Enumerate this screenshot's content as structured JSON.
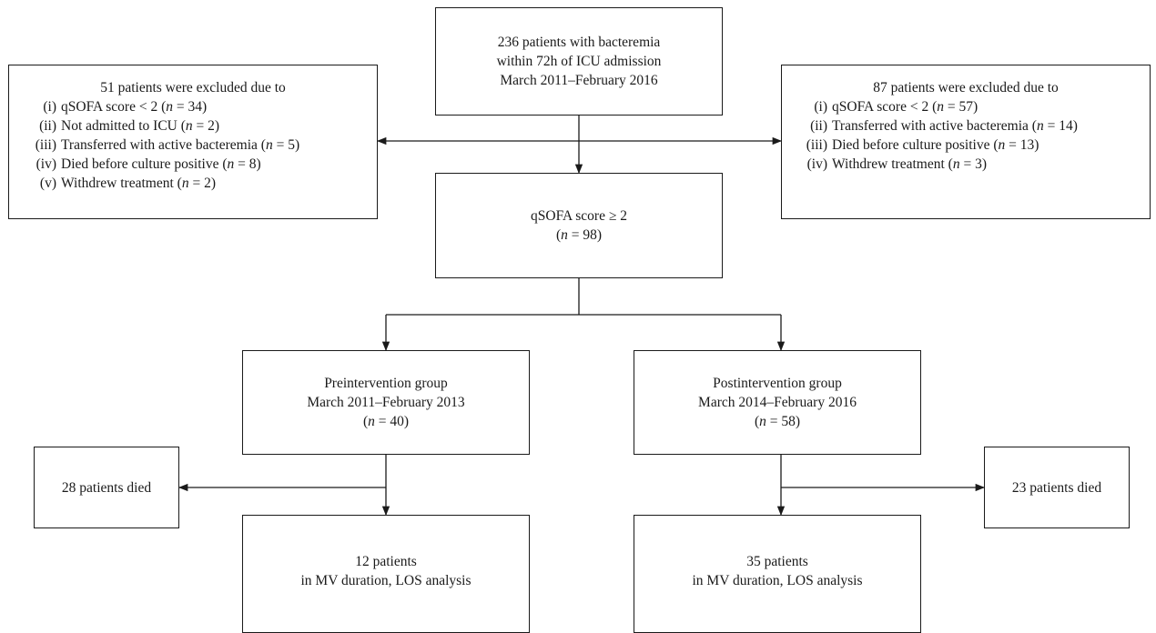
{
  "boxes": {
    "total": {
      "line1": "236 patients with bacteremia",
      "line2": "within 72h of ICU admission",
      "line3": "March 2011–February 2016"
    },
    "excluded_left": {
      "heading": "51 patients were excluded due to",
      "items": [
        {
          "num": "(i)",
          "label": "qSOFA score < 2",
          "n": "34"
        },
        {
          "num": "(ii)",
          "label": "Not admitted to ICU",
          "n": "2"
        },
        {
          "num": "(iii)",
          "label": "Transferred with active bacteremia",
          "n": "5"
        },
        {
          "num": "(iv)",
          "label": "Died before culture positive",
          "n": "8"
        },
        {
          "num": "(v)",
          "label": "Withdrew treatment",
          "n": "2"
        }
      ]
    },
    "excluded_right": {
      "heading": "87 patients were excluded due to",
      "items": [
        {
          "num": "(i)",
          "label": "qSOFA score < 2",
          "n": "57"
        },
        {
          "num": "(ii)",
          "label": "Transferred with active bacteremia",
          "n": "14"
        },
        {
          "num": "(iii)",
          "label": "Died before culture positive",
          "n": "13"
        },
        {
          "num": "(iv)",
          "label": "Withdrew treatment",
          "n": "3"
        }
      ]
    },
    "qsofa": {
      "line1": "qSOFA score ≥ 2",
      "n": "98"
    },
    "pre": {
      "line1": "Preintervention group",
      "line2": "March 2011–February 2013",
      "n": "40"
    },
    "post": {
      "line1": "Postintervention group",
      "line2": "March 2014–February 2016",
      "n": "58"
    },
    "died_left": {
      "line1": "28 patients died"
    },
    "died_right": {
      "line1": "23 patients died"
    },
    "final_left": {
      "line1": "12 patients",
      "line2": "in MV duration, LOS analysis"
    },
    "final_right": {
      "line1": "35 patients",
      "line2": "in MV duration, LOS analysis"
    }
  },
  "labels": {
    "n_open": "(",
    "n_var": "n",
    "n_eq": " = ",
    "n_close": ")"
  },
  "colors": {
    "line": "#1a1a1a"
  }
}
